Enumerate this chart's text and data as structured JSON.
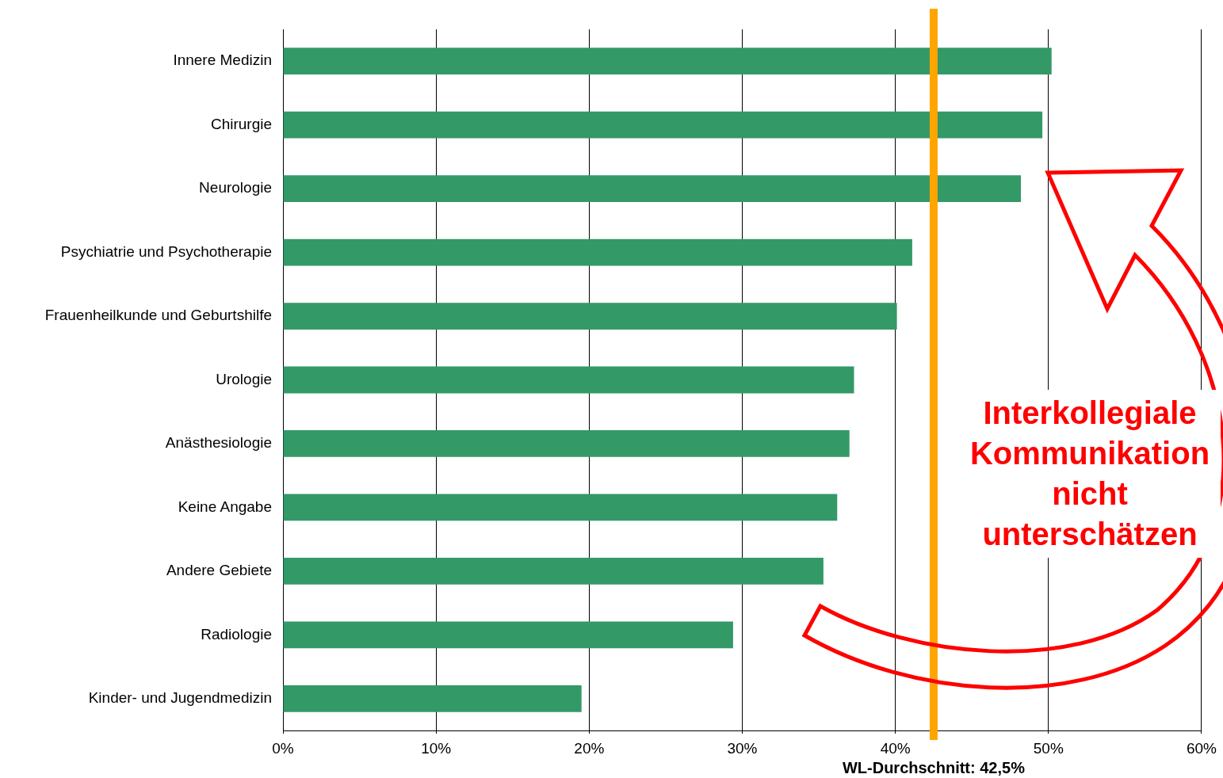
{
  "chart_data": {
    "type": "bar",
    "orientation": "horizontal",
    "categories": [
      "Innere Medizin",
      "Chirurgie",
      "Neurologie",
      "Psychiatrie und Psychotherapie",
      "Frauenheilkunde und Geburtshilfe",
      "Urologie",
      "Anästhesiologie",
      "Keine Angabe",
      "Andere Gebiete",
      "Radiologie",
      "Kinder- und Jugendmedizin"
    ],
    "values": [
      50.2,
      49.6,
      48.2,
      41.1,
      40.1,
      37.3,
      37.0,
      36.2,
      35.3,
      29.4,
      19.5
    ],
    "color": "#339966",
    "xlim": [
      0,
      60
    ],
    "xticks": [
      {
        "value": 0,
        "label": "0%"
      },
      {
        "value": 10,
        "label": "10%"
      },
      {
        "value": 20,
        "label": "20%"
      },
      {
        "value": 30,
        "label": "30%"
      },
      {
        "value": 40,
        "label": "40%"
      },
      {
        "value": 50,
        "label": "50%"
      },
      {
        "value": 60,
        "label": "60%"
      }
    ],
    "grid": "x",
    "legend": false,
    "ref_lines": [
      {
        "axis": "x",
        "value": 42.5,
        "label": "WL-Durchschnitt: 42,5%",
        "color": "#ffa500"
      }
    ],
    "annotations": [
      "Interkollegiale Kommunikation nicht unterschätzen"
    ]
  }
}
